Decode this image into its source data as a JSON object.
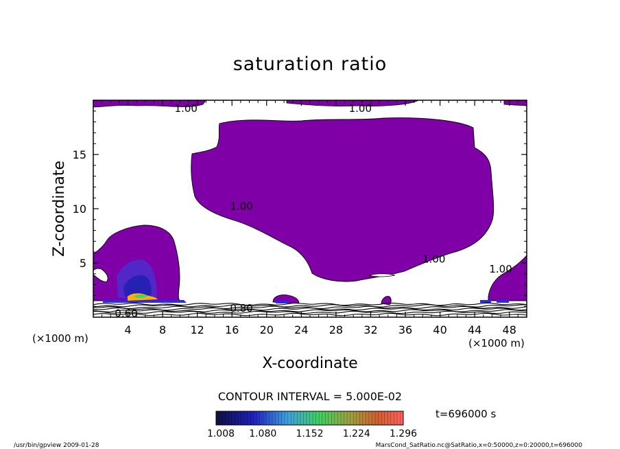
{
  "chart_data": {
    "type": "contour",
    "title": "saturation ratio",
    "xlabel": "X-coordinate",
    "ylabel": "Z-coordinate",
    "x_unit": "(×1000 m)",
    "z_unit": "(×1000 m)",
    "xlim": [
      0,
      50
    ],
    "ylim": [
      0,
      20
    ],
    "x_ticks": [
      4,
      8,
      12,
      16,
      20,
      24,
      28,
      32,
      36,
      40,
      44,
      48
    ],
    "y_ticks": [
      5,
      10,
      15
    ],
    "contour_interval_text": "CONTOUR INTERVAL = 5.000E-02",
    "time_text": "t=696000 s",
    "contour_labels": [
      {
        "text": "1.00",
        "x": 10.7,
        "z": 19.3
      },
      {
        "text": "1.00",
        "x": 30.8,
        "z": 19.3
      },
      {
        "text": "1.00",
        "x": 17.1,
        "z": 10.3
      },
      {
        "text": "1.00",
        "x": 39.3,
        "z": 5.4
      },
      {
        "text": "1.00",
        "x": 47.0,
        "z": 4.5
      },
      {
        "text": "0.60",
        "x": 3.8,
        "z": 0.4
      },
      {
        "text": "0.80",
        "x": 17.1,
        "z": 0.9
      }
    ],
    "colorbar": {
      "tick_labels": [
        "1.008",
        "1.080",
        "1.152",
        "1.224",
        "1.296"
      ],
      "range": [
        1.008,
        1.296
      ]
    },
    "colors": {
      "saturated_fill": "#8000a8",
      "contour_line": "#000000",
      "background": "#ffffff"
    }
  },
  "footer": {
    "left": "/usr/bin/gpview  2009-01-28",
    "right": "MarsCond_SatRatio.nc@SatRatio,x=0:50000,z=0:20000,t=696000"
  }
}
